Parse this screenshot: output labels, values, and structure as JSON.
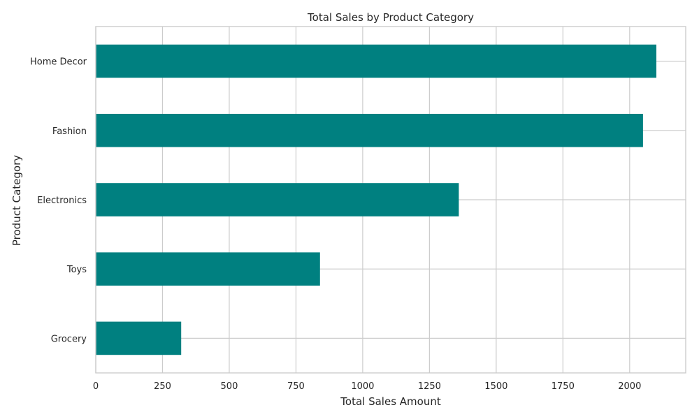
{
  "chart_data": {
    "type": "bar",
    "orientation": "horizontal",
    "title": "Total Sales by Product Category",
    "xlabel": "Total Sales Amount",
    "ylabel": "Product Category",
    "categories": [
      "Home Decor",
      "Fashion",
      "Electronics",
      "Toys",
      "Grocery"
    ],
    "values": [
      2100,
      2050,
      1360,
      840,
      320
    ],
    "xlim": [
      0,
      2210
    ],
    "xticks": [
      0,
      250,
      500,
      750,
      1000,
      1250,
      1500,
      1750,
      2000
    ],
    "xtick_labels": [
      "0",
      "250",
      "500",
      "750",
      "1000",
      "1250",
      "1500",
      "1750",
      "2000"
    ],
    "grid": true,
    "bar_color": "#008080",
    "grid_color": "#cccccc",
    "text_color": "#262626"
  }
}
